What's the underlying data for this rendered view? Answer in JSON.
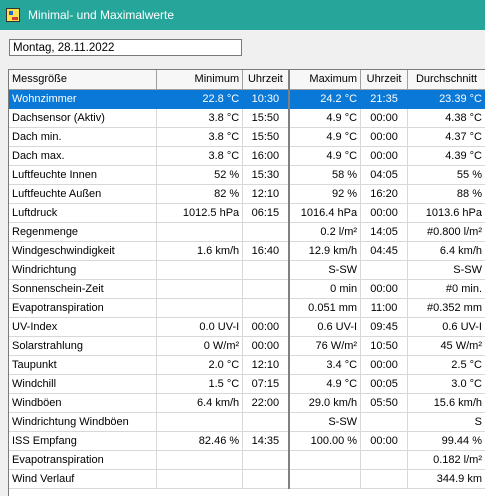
{
  "window": {
    "title": "Minimal- und Maximalwerte",
    "icon": "weather-station-icon"
  },
  "date_field": {
    "value": "Montag, 28.11.2022"
  },
  "columns": [
    "Messgröße",
    "Minimum",
    "Uhrzeit",
    "Maximum",
    "Uhrzeit",
    "Durchschnitt"
  ],
  "selected_row": 0,
  "rows": [
    [
      "Wohnzimmer",
      "22.8 °C",
      "10:30",
      "24.2 °C",
      "21:35",
      "23.39 °C"
    ],
    [
      "Dachsensor (Aktiv)",
      "3.8 °C",
      "15:50",
      "4.9 °C",
      "00:00",
      "4.38 °C"
    ],
    [
      "Dach min.",
      "3.8 °C",
      "15:50",
      "4.9 °C",
      "00:00",
      "4.37 °C"
    ],
    [
      "Dach max.",
      "3.8 °C",
      "16:00",
      "4.9 °C",
      "00:00",
      "4.39 °C"
    ],
    [
      "Luftfeuchte Innen",
      "52 %",
      "15:30",
      "58 %",
      "04:05",
      "55 %"
    ],
    [
      "Luftfeuchte Außen",
      "82 %",
      "12:10",
      "92 %",
      "16:20",
      "88 %"
    ],
    [
      "Luftdruck",
      "1012.5 hPa",
      "06:15",
      "1016.4 hPa",
      "00:00",
      "1013.6 hPa"
    ],
    [
      "Regenmenge",
      "",
      "",
      "0.2 l/m²",
      "14:05",
      "#0.800 l/m²"
    ],
    [
      "Windgeschwindigkeit",
      "1.6 km/h",
      "16:40",
      "12.9 km/h",
      "04:45",
      "6.4 km/h"
    ],
    [
      "Windrichtung",
      "",
      "",
      "S-SW",
      "",
      "S-SW"
    ],
    [
      "Sonnenschein-Zeit",
      "",
      "",
      "0 min",
      "00:00",
      "#0 min."
    ],
    [
      "Evapotranspiration",
      "",
      "",
      "0.051 mm",
      "11:00",
      "#0.352 mm"
    ],
    [
      "UV-Index",
      "0.0 UV-I",
      "00:00",
      "0.6 UV-I",
      "09:45",
      "0.6 UV-I"
    ],
    [
      "Solarstrahlung",
      "0 W/m²",
      "00:00",
      "76 W/m²",
      "10:50",
      "45 W/m²"
    ],
    [
      "Taupunkt",
      "2.0 °C",
      "12:10",
      "3.4 °C",
      "00:00",
      "2.5 °C"
    ],
    [
      "Windchill",
      "1.5 °C",
      "07:15",
      "4.9 °C",
      "00:05",
      "3.0 °C"
    ],
    [
      "Windböen",
      "6.4 km/h",
      "22:00",
      "29.0 km/h",
      "05:50",
      "15.6 km/h"
    ],
    [
      "Windrichtung Windböen",
      "",
      "",
      "S-SW",
      "",
      "S"
    ],
    [
      "ISS Empfang",
      "82.46 %",
      "14:35",
      "100.00 %",
      "00:00",
      "99.44 %"
    ],
    [
      "Evapotranspiration",
      "",
      "",
      "",
      "",
      "0.182 l/m²"
    ],
    [
      "Wind Verlauf",
      "",
      "",
      "",
      "",
      "344.9 km"
    ]
  ]
}
